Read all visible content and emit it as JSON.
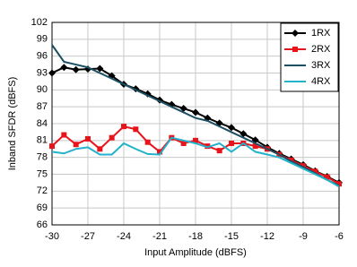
{
  "chart_data": {
    "type": "line",
    "x_label": "Input Amplitude (dBFS)",
    "y_label": "Inband SFDR (dBFS)",
    "x": [
      -30,
      -29,
      -28,
      -27,
      -26,
      -25,
      -24,
      -23,
      -22,
      -21,
      -20,
      -19,
      -18,
      -17,
      -16,
      -15,
      -14,
      -13,
      -12,
      -11,
      -10,
      -9,
      -8,
      -7,
      -6
    ],
    "series": [
      {
        "name": "1RX",
        "color": "#000000",
        "marker": "diamond",
        "values": [
          93,
          94,
          93.6,
          93.7,
          93.8,
          92.5,
          91,
          90.2,
          89.3,
          88.2,
          87.4,
          86.7,
          86,
          85,
          84.1,
          83.3,
          82.2,
          81.1,
          79.8,
          78.7,
          77.7,
          76.7,
          75.6,
          74.6,
          73.5
        ]
      },
      {
        "name": "2RX",
        "color": "#e8141c",
        "marker": "square",
        "values": [
          80,
          82,
          80.3,
          81.3,
          79.5,
          81.5,
          83.5,
          83,
          80.7,
          79,
          81.5,
          80.5,
          81,
          80,
          79.2,
          80.5,
          80.5,
          80,
          79.5,
          78.5,
          77.5,
          76.5,
          75.5,
          74.5,
          73.3
        ]
      },
      {
        "name": "3RX",
        "color": "#1d4f63",
        "marker": "none",
        "values": [
          98,
          95,
          94.5,
          94,
          93,
          92,
          91,
          90,
          89,
          88,
          87,
          86,
          85,
          84.5,
          83.5,
          82.5,
          81.5,
          80.5,
          79.5,
          78.5,
          77.3,
          76.3,
          75.2,
          74,
          73
        ]
      },
      {
        "name": "4RX",
        "color": "#22b2cc",
        "marker": "none",
        "values": [
          79,
          78.7,
          79.5,
          79.8,
          78.5,
          78.5,
          80.5,
          79.5,
          78.6,
          78.5,
          81.5,
          81,
          80.5,
          79.8,
          80.5,
          79,
          80.5,
          79,
          78.5,
          78,
          77,
          76,
          75,
          74,
          72.8
        ]
      }
    ],
    "xlim": [
      -30,
      -6
    ],
    "xticks": [
      -30,
      -27,
      -24,
      -21,
      -18,
      -15,
      -12,
      -9,
      -6
    ],
    "ylim": [
      66,
      102
    ],
    "yticks": [
      66,
      69,
      72,
      75,
      78,
      81,
      84,
      87,
      90,
      93,
      96,
      99,
      102
    ],
    "grid": true,
    "legend": "top-right"
  }
}
